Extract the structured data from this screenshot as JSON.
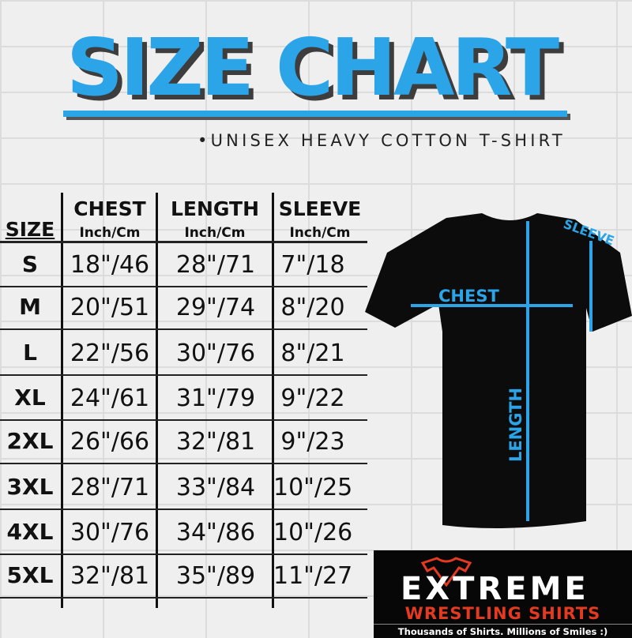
{
  "title": "SIZE CHART",
  "subtitle": "•UNISEX HEAVY COTTON T-SHIRT",
  "accent_color": "#2ba4e8",
  "table": {
    "size_header": "SIZE",
    "columns": [
      {
        "label": "CHEST",
        "unit": "Inch/Cm"
      },
      {
        "label": "LENGTH",
        "unit": "Inch/Cm"
      },
      {
        "label": "SLEEVE",
        "unit": "Inch/Cm"
      }
    ],
    "rows": [
      {
        "size": "S",
        "chest": "18\"/46",
        "length": "28\"/71",
        "sleeve": "7\"/18"
      },
      {
        "size": "M",
        "chest": "20\"/51",
        "length": "29\"/74",
        "sleeve": "8\"/20"
      },
      {
        "size": "L",
        "chest": "22\"/56",
        "length": "30\"/76",
        "sleeve": "8\"/21"
      },
      {
        "size": "XL",
        "chest": "24\"/61",
        "length": "31\"/79",
        "sleeve": "9\"/22"
      },
      {
        "size": "2XL",
        "chest": "26\"/66",
        "length": "32\"/81",
        "sleeve": "9\"/23"
      },
      {
        "size": "3XL",
        "chest": "28\"/71",
        "length": "33\"/84",
        "sleeve": "10\"/25"
      },
      {
        "size": "4XL",
        "chest": "30\"/76",
        "length": "34\"/86",
        "sleeve": "10\"/26"
      },
      {
        "size": "5XL",
        "chest": "32\"/81",
        "length": "35\"/89",
        "sleeve": "11\"/27"
      }
    ]
  },
  "diagram": {
    "chest": "CHEST",
    "length": "LENGTH",
    "sleeve": "SLEEVE"
  },
  "logo": {
    "name": "EXTREME",
    "line2": "WRESTLING SHIRTS",
    "tagline": "Thousands of Shirts. Millions of Smiles :)"
  }
}
